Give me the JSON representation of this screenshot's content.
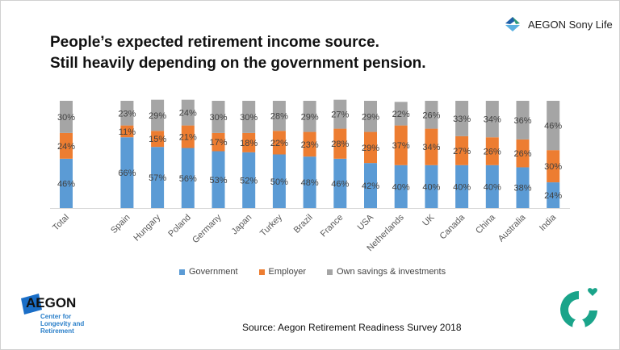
{
  "title_line1": "People’s expected retirement income source.",
  "title_line2": "Still heavily depending on the government pension.",
  "brand_name": "AEGON Sony Life",
  "source": "Source: Aegon Retirement Readiness Survey 2018",
  "center_logo": {
    "word": "AEGON",
    "subtitle": "Center for Longevity and Retirement"
  },
  "chart_data": {
    "type": "bar",
    "stacked": "100%",
    "title": "",
    "xlabel": "",
    "ylabel": "",
    "ylim": [
      0,
      100
    ],
    "legend_position": "bottom",
    "categories": [
      "Total",
      "Spain",
      "Hungary",
      "Poland",
      "Germany",
      "Japan",
      "Turkey",
      "Brazil",
      "France",
      "USA",
      "Netherlands",
      "UK",
      "Canada",
      "China",
      "Australia",
      "India"
    ],
    "series": [
      {
        "name": "Government",
        "color": "#5b9bd5",
        "values": [
          46,
          66,
          57,
          56,
          53,
          52,
          50,
          48,
          46,
          42,
          40,
          40,
          40,
          40,
          38,
          24
        ]
      },
      {
        "name": "Employer",
        "color": "#ed7d31",
        "values": [
          24,
          11,
          15,
          21,
          17,
          18,
          22,
          23,
          28,
          29,
          37,
          34,
          27,
          26,
          26,
          30
        ]
      },
      {
        "name": "Own savings & investments",
        "color": "#a5a5a5",
        "values": [
          30,
          23,
          29,
          24,
          30,
          30,
          28,
          29,
          27,
          29,
          22,
          26,
          33,
          34,
          36,
          46
        ]
      }
    ]
  }
}
